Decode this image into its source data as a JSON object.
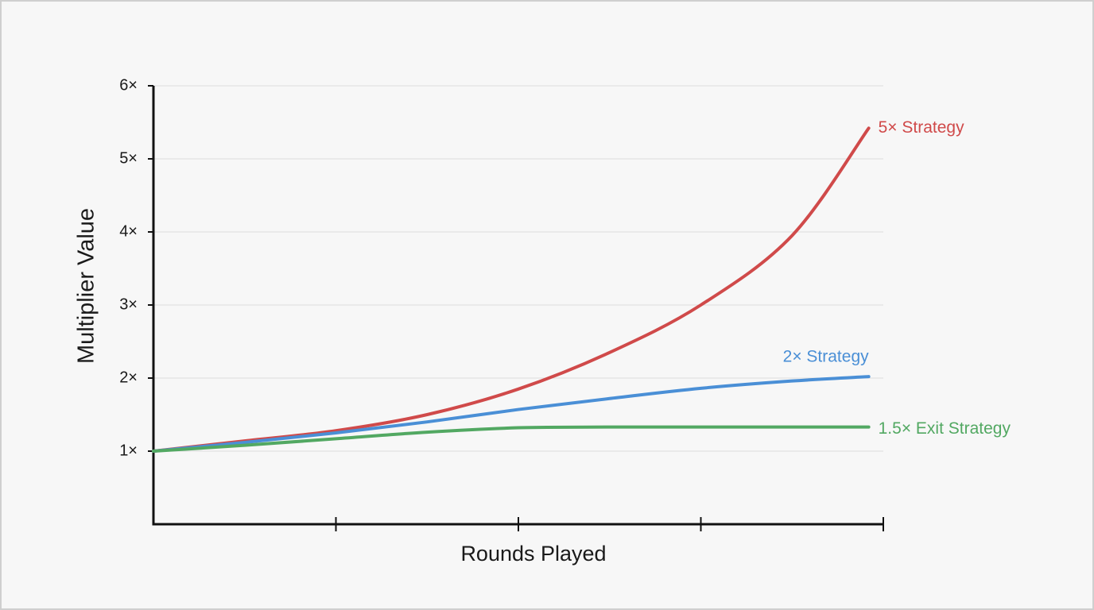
{
  "chart_data": {
    "type": "line",
    "x_label": "Rounds Played",
    "y_label": "Multiplier Value",
    "x": [
      0,
      0.5,
      1,
      1.5,
      2,
      2.5,
      3,
      3.5,
      3.92
    ],
    "series": [
      {
        "name": "5× Strategy",
        "color": "#d04a4a",
        "values": [
          1.0,
          1.14,
          1.28,
          1.5,
          1.85,
          2.35,
          3.0,
          3.95,
          5.42
        ]
      },
      {
        "name": "2× Strategy",
        "color": "#4a8fd6",
        "values": [
          1.0,
          1.12,
          1.25,
          1.4,
          1.57,
          1.72,
          1.86,
          1.96,
          2.02
        ]
      },
      {
        "name": "1.5× Exit Strategy",
        "color": "#52a862",
        "values": [
          1.0,
          1.08,
          1.17,
          1.26,
          1.32,
          1.33,
          1.33,
          1.33,
          1.33
        ]
      }
    ],
    "xlim": [
      0,
      4
    ],
    "xticks": [
      1,
      2,
      3,
      4
    ],
    "ylim": [
      0,
      6
    ],
    "yticks": [
      {
        "value": 1,
        "label": "1×"
      },
      {
        "value": 2,
        "label": "2×"
      },
      {
        "value": 3,
        "label": "3×"
      },
      {
        "value": 4,
        "label": "4×"
      },
      {
        "value": 5,
        "label": "5×"
      },
      {
        "value": 6,
        "label": "6×"
      }
    ],
    "grid": true
  }
}
